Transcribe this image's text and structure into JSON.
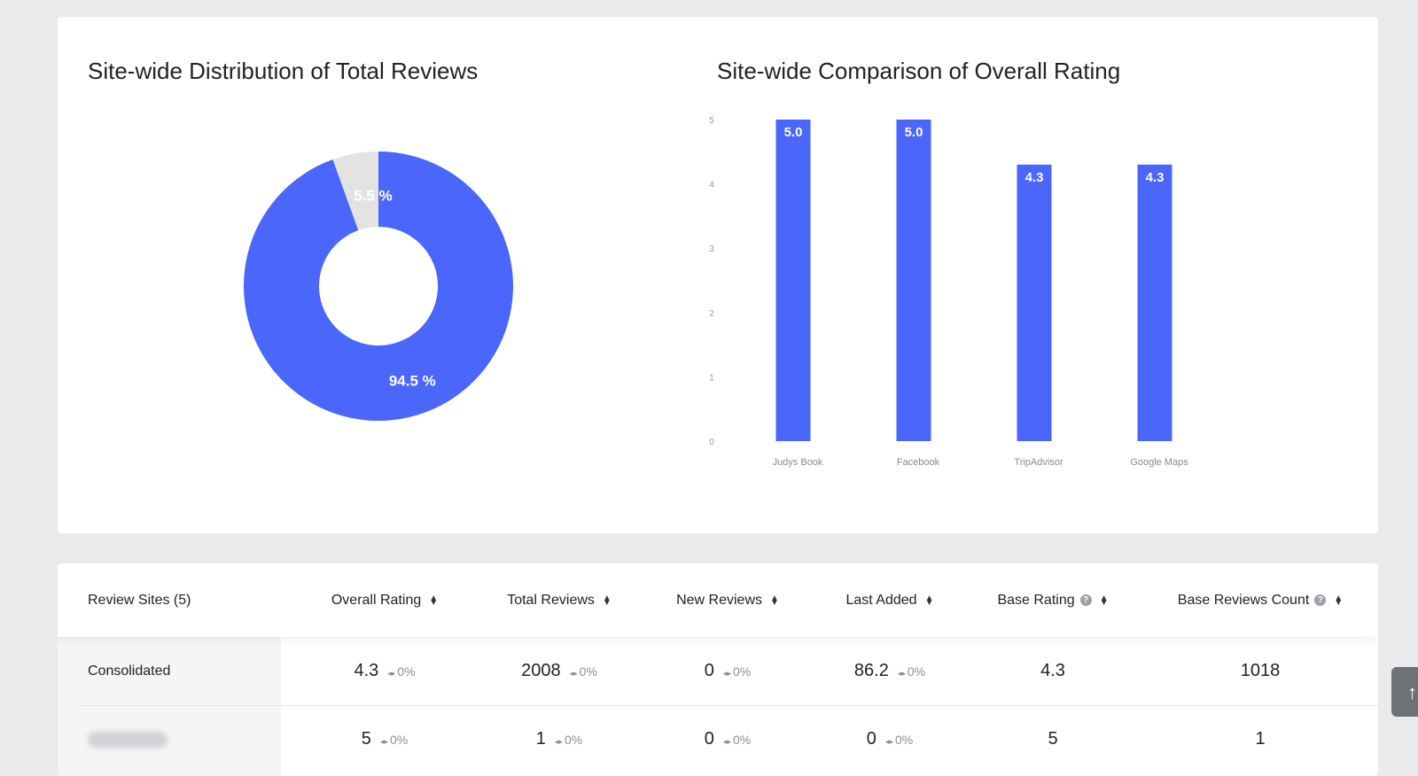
{
  "donut_chart": {
    "title": "Site-wide Distribution of Total Reviews",
    "chart_data": {
      "type": "pie",
      "slices": [
        {
          "name": "primary",
          "value": 94.5,
          "label": "94.5 %",
          "color": "#4a66fb"
        },
        {
          "name": "other",
          "value": 5.5,
          "label": "5.5 %",
          "color": "#e3e3e3"
        }
      ]
    }
  },
  "bar_chart": {
    "title": "Site-wide Comparison of Overall Rating",
    "chart_data": {
      "type": "bar",
      "categories": [
        "Judys Book",
        "Facebook",
        "TripAdvisor",
        "Google Maps"
      ],
      "values": [
        5.0,
        5.0,
        4.3,
        4.3
      ],
      "value_labels": [
        "5.0",
        "5.0",
        "4.3",
        "4.3"
      ],
      "yticks": [
        "0",
        "1",
        "2",
        "3",
        "4",
        "5"
      ],
      "ylim": [
        0,
        5
      ],
      "color": "#4a66fb"
    }
  },
  "table": {
    "columns": [
      {
        "label": "Review Sites (5)",
        "sortable": false,
        "help": false
      },
      {
        "label": "Overall Rating",
        "sortable": true,
        "help": false
      },
      {
        "label": "Total Reviews",
        "sortable": true,
        "help": false
      },
      {
        "label": "New Reviews",
        "sortable": true,
        "help": false
      },
      {
        "label": "Last Added",
        "sortable": true,
        "help": false
      },
      {
        "label": "Base Rating",
        "sortable": true,
        "help": true
      },
      {
        "label": "Base Reviews Count",
        "sortable": true,
        "help": true
      }
    ],
    "rows": [
      {
        "site": "Consolidated",
        "overall_rating": "4.3",
        "overall_rating_change": "0%",
        "total_reviews": "2008",
        "total_reviews_change": "0%",
        "new_reviews": "0",
        "new_reviews_change": "0%",
        "last_added": "86.2",
        "last_added_change": "0%",
        "base_rating": "4.3",
        "base_reviews_count": "1018"
      },
      {
        "site": "",
        "overall_rating": "5",
        "overall_rating_change": "0%",
        "total_reviews": "1",
        "total_reviews_change": "0%",
        "new_reviews": "0",
        "new_reviews_change": "0%",
        "last_added": "0",
        "last_added_change": "0%",
        "base_rating": "5",
        "base_reviews_count": "1"
      }
    ]
  }
}
